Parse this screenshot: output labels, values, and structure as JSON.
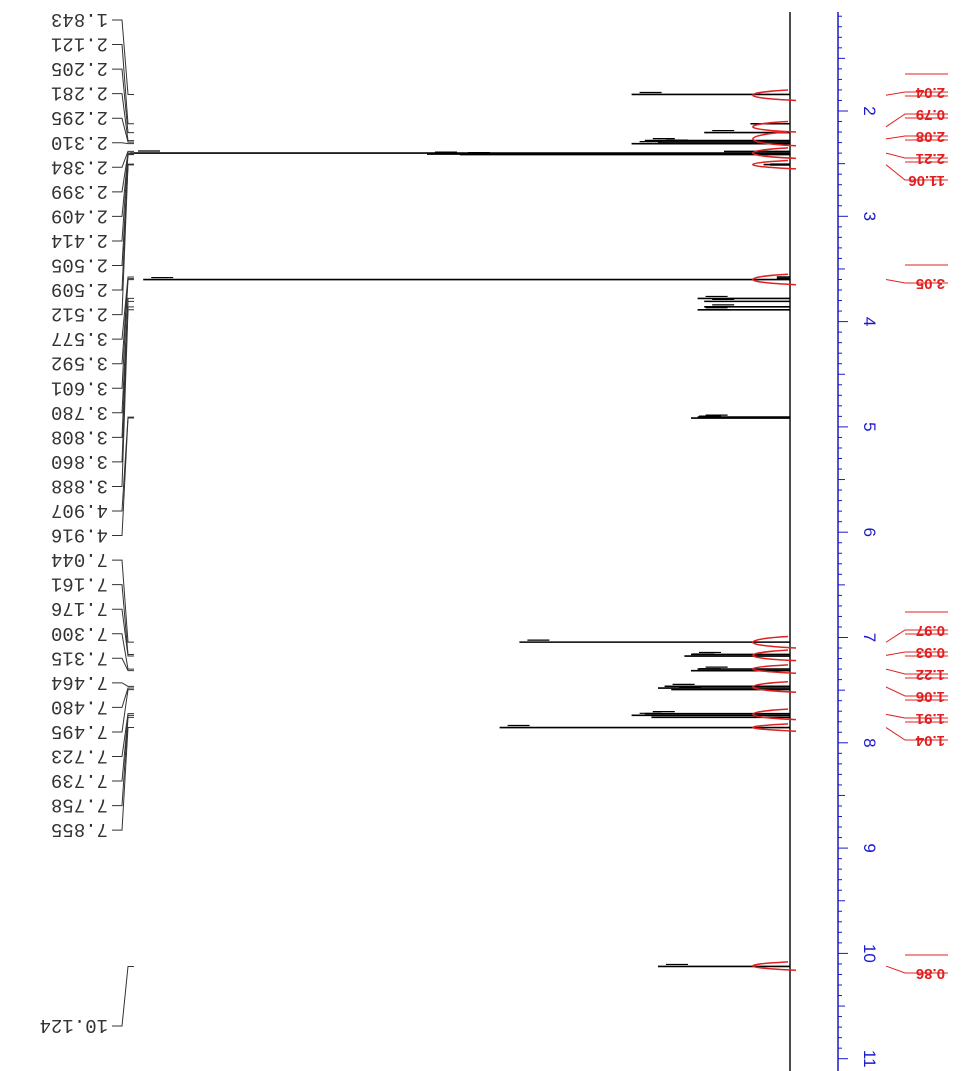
{
  "chart_data": {
    "type": "line",
    "orientation": "rotated-90",
    "x_axis_unit": "ppm",
    "axis_ticks": [
      2,
      3,
      4,
      5,
      6,
      7,
      8,
      9,
      10,
      11
    ],
    "axis_range": [
      1.0,
      11.0
    ],
    "axis_color": "#1a1acc",
    "integral_color": "#e02020",
    "spectrum_color": "#000000",
    "peak_labels": [
      "1.843",
      "2.121",
      "2.205",
      "2.281",
      "2.295",
      "2.310",
      "2.384",
      "2.399",
      "2.409",
      "2.414",
      "2.505",
      "2.509",
      "2.512",
      "3.577",
      "3.592",
      "3.601",
      "3.780",
      "3.808",
      "3.860",
      "3.888",
      "4.907",
      "4.916",
      "7.044",
      "7.161",
      "7.176",
      "7.300",
      "7.315",
      "7.464",
      "7.480",
      "7.495",
      "7.723",
      "7.739",
      "7.758",
      "7.855",
      "10.124"
    ],
    "peaks": [
      {
        "ppm": 1.843,
        "height": 0.24
      },
      {
        "ppm": 2.121,
        "height": 0.06
      },
      {
        "ppm": 2.205,
        "height": 0.13
      },
      {
        "ppm": 2.281,
        "height": 0.22
      },
      {
        "ppm": 2.295,
        "height": 0.2
      },
      {
        "ppm": 2.31,
        "height": 0.24
      },
      {
        "ppm": 2.384,
        "height": 0.1
      },
      {
        "ppm": 2.399,
        "height": 1.0
      },
      {
        "ppm": 2.409,
        "height": 0.55
      },
      {
        "ppm": 2.414,
        "height": 0.5
      },
      {
        "ppm": 2.505,
        "height": 0.03
      },
      {
        "ppm": 2.509,
        "height": 0.04
      },
      {
        "ppm": 2.512,
        "height": 0.03
      },
      {
        "ppm": 3.577,
        "height": 0.02
      },
      {
        "ppm": 3.592,
        "height": 0.02
      },
      {
        "ppm": 3.601,
        "height": 0.98
      },
      {
        "ppm": 3.78,
        "height": 0.14
      },
      {
        "ppm": 3.808,
        "height": 0.13
      },
      {
        "ppm": 3.86,
        "height": 0.13
      },
      {
        "ppm": 3.888,
        "height": 0.14
      },
      {
        "ppm": 4.907,
        "height": 0.14
      },
      {
        "ppm": 4.916,
        "height": 0.15
      },
      {
        "ppm": 7.044,
        "height": 0.41
      },
      {
        "ppm": 7.161,
        "height": 0.15
      },
      {
        "ppm": 7.176,
        "height": 0.16
      },
      {
        "ppm": 7.3,
        "height": 0.14
      },
      {
        "ppm": 7.315,
        "height": 0.15
      },
      {
        "ppm": 7.464,
        "height": 0.19
      },
      {
        "ppm": 7.48,
        "height": 0.2
      },
      {
        "ppm": 7.495,
        "height": 0.18
      },
      {
        "ppm": 7.723,
        "height": 0.22
      },
      {
        "ppm": 7.739,
        "height": 0.24
      },
      {
        "ppm": 7.758,
        "height": 0.21
      },
      {
        "ppm": 7.855,
        "height": 0.44
      },
      {
        "ppm": 10.124,
        "height": 0.2
      }
    ],
    "integrals": [
      {
        "from": 1.8,
        "to": 1.9,
        "value": "2.04"
      },
      {
        "from": 2.1,
        "to": 2.2,
        "value": "0.79"
      },
      {
        "from": 2.2,
        "to": 2.33,
        "value": "2.08"
      },
      {
        "from": 2.35,
        "to": 2.45,
        "value": "2.21"
      },
      {
        "from": 2.47,
        "to": 2.55,
        "value": "11.06"
      },
      {
        "from": 3.55,
        "to": 3.65,
        "value": "3.05"
      },
      {
        "from": 6.99,
        "to": 7.1,
        "value": "0.97"
      },
      {
        "from": 7.12,
        "to": 7.22,
        "value": "0.93"
      },
      {
        "from": 7.26,
        "to": 7.34,
        "value": "1.22"
      },
      {
        "from": 7.42,
        "to": 7.52,
        "value": "1.06"
      },
      {
        "from": 7.68,
        "to": 7.78,
        "value": "1.91"
      },
      {
        "from": 7.82,
        "to": 7.89,
        "value": "1.04"
      },
      {
        "from": 10.08,
        "to": 10.16,
        "value": "0.86"
      }
    ]
  }
}
